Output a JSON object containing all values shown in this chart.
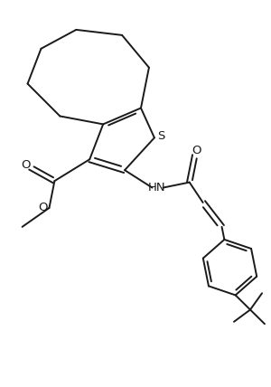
{
  "line_color": "#1a1a1a",
  "background_color": "#ffffff",
  "line_width": 1.4,
  "figsize": [
    3.0,
    4.28
  ],
  "dpi": 100,
  "xlim": [
    0,
    10
  ],
  "ylim": [
    0,
    14.27
  ]
}
